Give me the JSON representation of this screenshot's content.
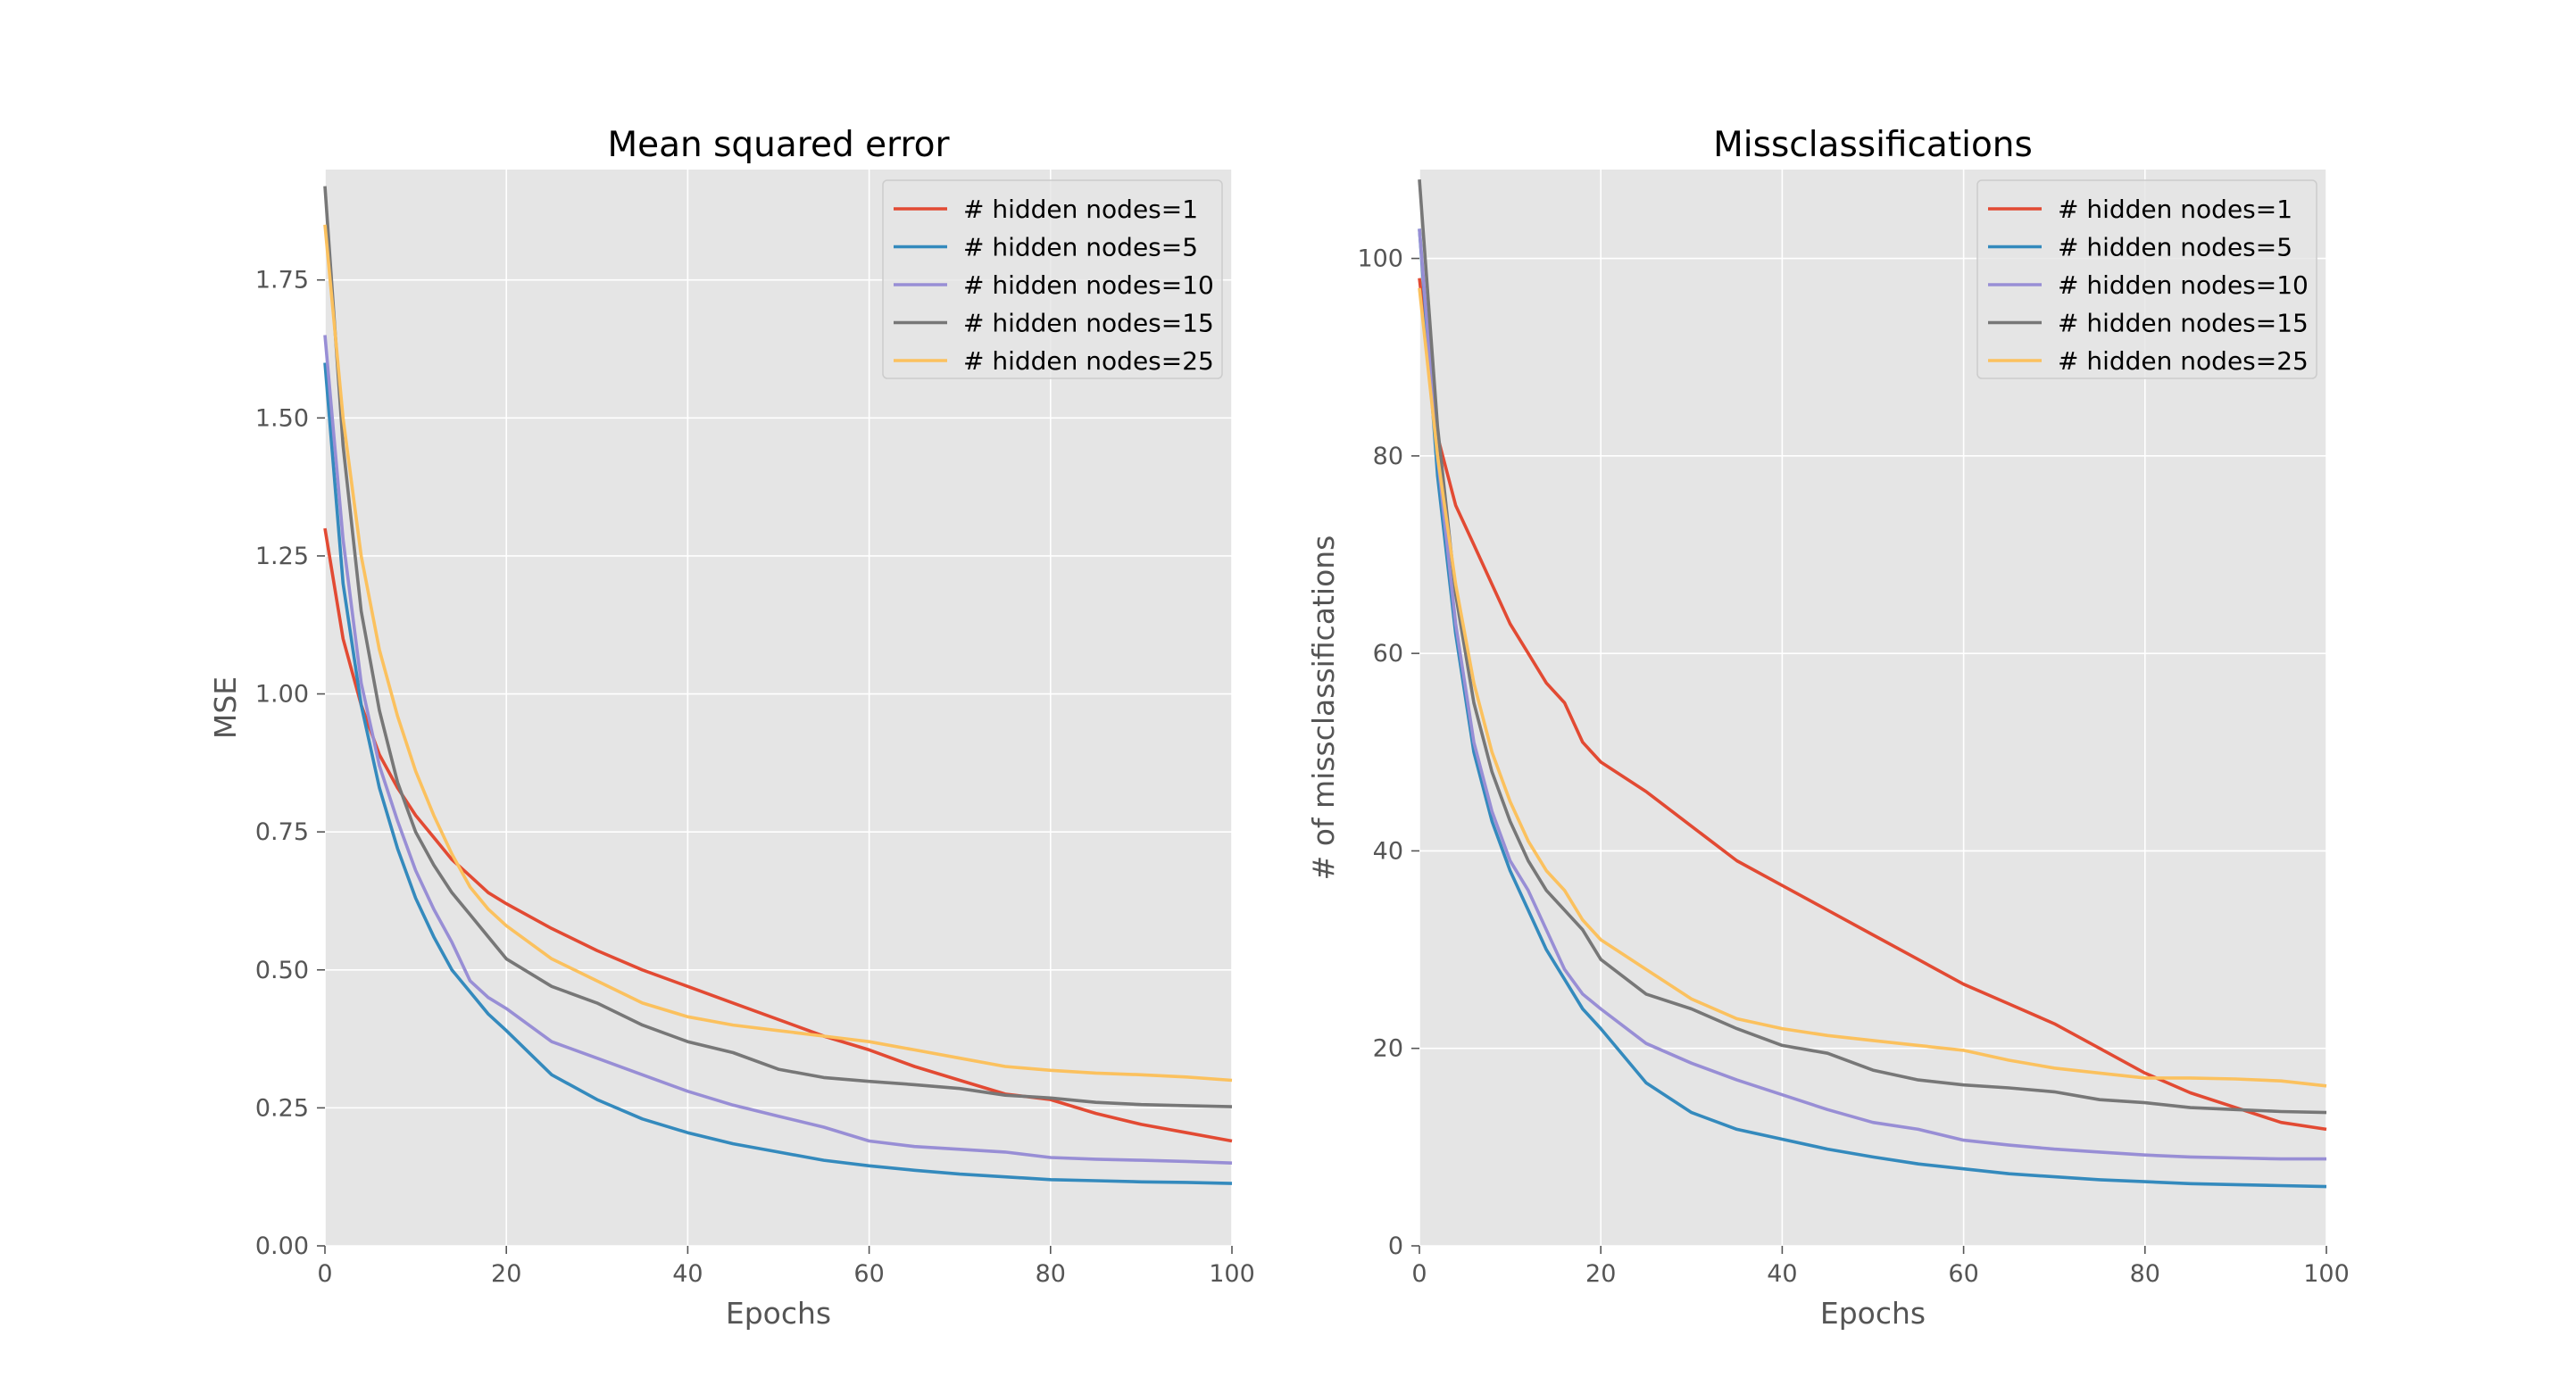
{
  "chart_data": [
    {
      "type": "line",
      "title": "Mean squared error",
      "xlabel": "Epochs",
      "ylabel": "MSE",
      "xlim": [
        0,
        100
      ],
      "ylim": [
        0,
        1.95
      ],
      "xticks": [
        0,
        20,
        40,
        60,
        80,
        100
      ],
      "xtick_labels": [
        "0",
        "20",
        "40",
        "60",
        "80",
        "100"
      ],
      "yticks": [
        0,
        0.25,
        0.5,
        0.75,
        1.0,
        1.25,
        1.5,
        1.75
      ],
      "ytick_labels": [
        "0.00",
        "0.25",
        "0.50",
        "0.75",
        "1.00",
        "1.25",
        "1.50",
        "1.75"
      ],
      "grid": true,
      "legend": "top-right",
      "x": [
        0,
        2,
        4,
        6,
        8,
        10,
        12,
        14,
        16,
        18,
        20,
        25,
        30,
        35,
        40,
        45,
        50,
        55,
        60,
        65,
        70,
        75,
        80,
        85,
        90,
        95,
        100
      ],
      "series": [
        {
          "name": "# hidden nodes=1",
          "color": "#E24A33",
          "values": [
            1.3,
            1.1,
            0.98,
            0.89,
            0.83,
            0.78,
            0.74,
            0.7,
            0.67,
            0.64,
            0.62,
            0.575,
            0.535,
            0.5,
            0.47,
            0.44,
            0.41,
            0.38,
            0.355,
            0.325,
            0.3,
            0.275,
            0.265,
            0.24,
            0.22,
            0.205,
            0.19
          ]
        },
        {
          "name": "# hidden nodes=5",
          "color": "#348ABD",
          "values": [
            1.6,
            1.2,
            0.98,
            0.83,
            0.72,
            0.63,
            0.56,
            0.5,
            0.46,
            0.42,
            0.39,
            0.31,
            0.265,
            0.23,
            0.205,
            0.185,
            0.17,
            0.155,
            0.145,
            0.137,
            0.13,
            0.125,
            0.12,
            0.118,
            0.116,
            0.115,
            0.113
          ]
        },
        {
          "name": "# hidden nodes=10",
          "color": "#988ED5",
          "values": [
            1.65,
            1.28,
            1.02,
            0.87,
            0.77,
            0.68,
            0.61,
            0.55,
            0.48,
            0.45,
            0.43,
            0.37,
            0.34,
            0.31,
            0.28,
            0.255,
            0.235,
            0.215,
            0.19,
            0.18,
            0.175,
            0.17,
            0.16,
            0.157,
            0.155,
            0.153,
            0.15
          ]
        },
        {
          "name": "# hidden nodes=15",
          "color": "#777777",
          "values": [
            1.92,
            1.45,
            1.15,
            0.97,
            0.84,
            0.75,
            0.69,
            0.64,
            0.6,
            0.56,
            0.52,
            0.47,
            0.44,
            0.4,
            0.37,
            0.35,
            0.32,
            0.305,
            0.298,
            0.292,
            0.285,
            0.273,
            0.268,
            0.26,
            0.256,
            0.254,
            0.252
          ]
        },
        {
          "name": "# hidden nodes=25",
          "color": "#FBC15E",
          "values": [
            1.85,
            1.5,
            1.25,
            1.08,
            0.96,
            0.86,
            0.78,
            0.71,
            0.65,
            0.61,
            0.58,
            0.52,
            0.48,
            0.44,
            0.415,
            0.4,
            0.39,
            0.38,
            0.37,
            0.355,
            0.34,
            0.325,
            0.318,
            0.313,
            0.31,
            0.306,
            0.3
          ]
        }
      ]
    },
    {
      "type": "line",
      "title": "Missclassifications",
      "xlabel": "Epochs",
      "ylabel": "# of missclassifications",
      "xlim": [
        0,
        100
      ],
      "ylim": [
        0,
        109
      ],
      "xticks": [
        0,
        20,
        40,
        60,
        80,
        100
      ],
      "xtick_labels": [
        "0",
        "20",
        "40",
        "60",
        "80",
        "100"
      ],
      "yticks": [
        0,
        20,
        40,
        60,
        80,
        100
      ],
      "ytick_labels": [
        "0",
        "20",
        "40",
        "60",
        "80",
        "100"
      ],
      "grid": true,
      "legend": "top-right",
      "x": [
        0,
        2,
        4,
        6,
        8,
        10,
        12,
        14,
        16,
        18,
        20,
        25,
        30,
        35,
        40,
        45,
        50,
        55,
        60,
        65,
        70,
        75,
        80,
        85,
        90,
        95,
        100
      ],
      "series": [
        {
          "name": "# hidden nodes=1",
          "color": "#E24A33",
          "values": [
            98,
            82,
            75,
            71,
            67,
            63,
            60,
            57,
            55,
            51,
            49,
            46,
            42.5,
            39,
            36.5,
            34,
            31.5,
            29,
            26.5,
            24.5,
            22.5,
            20,
            17.5,
            15.5,
            14,
            12.5,
            11.8
          ]
        },
        {
          "name": "# hidden nodes=5",
          "color": "#348ABD",
          "values": [
            103,
            78,
            62,
            50,
            43,
            38,
            34,
            30,
            27,
            24,
            22,
            16.5,
            13.5,
            11.8,
            10.8,
            9.8,
            9.0,
            8.3,
            7.8,
            7.3,
            7.0,
            6.7,
            6.5,
            6.3,
            6.2,
            6.1,
            6.0
          ]
        },
        {
          "name": "# hidden nodes=10",
          "color": "#988ED5",
          "values": [
            103,
            80,
            63,
            51,
            44,
            39,
            36,
            32,
            28,
            25.5,
            24,
            20.5,
            18.5,
            16.8,
            15.3,
            13.8,
            12.5,
            11.8,
            10.7,
            10.2,
            9.8,
            9.5,
            9.2,
            9.0,
            8.9,
            8.8,
            8.8
          ]
        },
        {
          "name": "# hidden nodes=15",
          "color": "#777777",
          "values": [
            108,
            83,
            66,
            55,
            48,
            43,
            39,
            36,
            34,
            32,
            29,
            25.5,
            24,
            22,
            20.3,
            19.5,
            17.8,
            16.8,
            16.3,
            16.0,
            15.6,
            14.8,
            14.5,
            14.0,
            13.8,
            13.6,
            13.5
          ]
        },
        {
          "name": "# hidden nodes=25",
          "color": "#FBC15E",
          "values": [
            97,
            80,
            67,
            57,
            50,
            45,
            41,
            38,
            36,
            33,
            31,
            28,
            25,
            23,
            22,
            21.3,
            20.8,
            20.3,
            19.8,
            18.8,
            18.0,
            17.5,
            17.0,
            17.0,
            16.9,
            16.7,
            16.2
          ]
        }
      ]
    }
  ]
}
